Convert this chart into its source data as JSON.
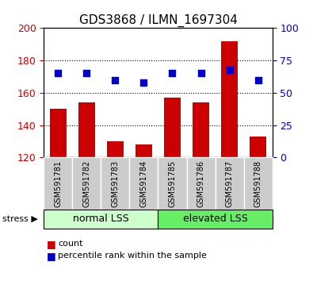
{
  "title": "GDS3868 / ILMN_1697304",
  "samples": [
    "GSM591781",
    "GSM591782",
    "GSM591783",
    "GSM591784",
    "GSM591785",
    "GSM591786",
    "GSM591787",
    "GSM591788"
  ],
  "bar_values": [
    150,
    154,
    130,
    128,
    157,
    154,
    192,
    133
  ],
  "dot_values": [
    65,
    65,
    60,
    58,
    65,
    65,
    68,
    60
  ],
  "bar_color": "#cc0000",
  "dot_color": "#0000cc",
  "bar_bottom": 120,
  "ylim_left": [
    120,
    200
  ],
  "ylim_right": [
    0,
    100
  ],
  "yticks_left": [
    120,
    140,
    160,
    180,
    200
  ],
  "yticks_right": [
    0,
    25,
    50,
    75,
    100
  ],
  "group1_label": "normal LSS",
  "group2_label": "elevated LSS",
  "stress_label": "stress",
  "legend_bar": "count",
  "legend_dot": "percentile rank within the sample",
  "group1_color": "#ccffcc",
  "group2_color": "#66ee66",
  "label_bg_color": "#cccccc"
}
